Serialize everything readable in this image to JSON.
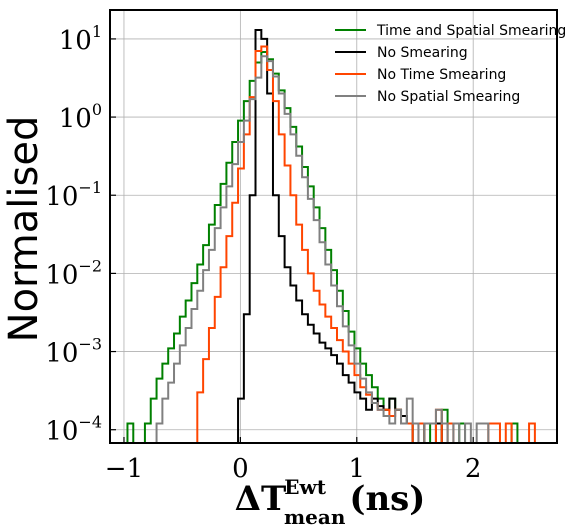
{
  "chart_data": {
    "type": "histogram-step",
    "ylabel": "Normalised",
    "xlabel": {
      "main": "ΔT",
      "sup": "Ewt",
      "sub": "mean",
      "unit": "(ns)"
    },
    "xlim": [
      -1.12,
      2.72
    ],
    "ylim_log10": [
      -4.17,
      1.37
    ],
    "log_y": true,
    "grid": true,
    "legend_position": "top-right",
    "x_ticks": [
      {
        "value": -1,
        "label": "−1"
      },
      {
        "value": 0,
        "label": "0"
      },
      {
        "value": 1,
        "label": "1"
      },
      {
        "value": 2,
        "label": "2"
      }
    ],
    "y_ticks": [
      {
        "exp": 1,
        "base": "10",
        "power": "1"
      },
      {
        "exp": 0,
        "base": "10",
        "power": "0"
      },
      {
        "exp": -1,
        "base": "10",
        "power": "−1"
      },
      {
        "exp": -2,
        "base": "10",
        "power": "−2"
      },
      {
        "exp": -3,
        "base": "10",
        "power": "−3"
      },
      {
        "exp": -4,
        "base": "10",
        "power": "−4"
      }
    ],
    "bins": {
      "start": -1.12,
      "width": 0.05
    },
    "series": [
      {
        "name": "Time and Spatial Smearing",
        "color": "#008000",
        "values": [
          0,
          0,
          0,
          0.00012,
          0,
          0,
          0.00012,
          0.00025,
          0.00045,
          0.0007,
          0.0011,
          0.0017,
          0.0028,
          0.0045,
          0.0075,
          0.013,
          0.023,
          0.042,
          0.075,
          0.14,
          0.26,
          0.48,
          0.9,
          1.6,
          2.9,
          5.0,
          6.8,
          5.5,
          3.6,
          2.2,
          1.3,
          0.75,
          0.42,
          0.23,
          0.13,
          0.07,
          0.038,
          0.02,
          0.011,
          0.006,
          0.0033,
          0.0018,
          0.0011,
          0.0007,
          0.0005,
          0.00035,
          0.00025,
          0.00018,
          0.00025,
          0.00018,
          0.00012,
          0.00012,
          0,
          0,
          0.00012,
          0,
          0,
          0.00018,
          0,
          0,
          0.00012,
          0,
          0,
          0,
          0,
          0,
          0,
          0,
          0,
          0.00012,
          0,
          0,
          0,
          0,
          0,
          0,
          0
        ]
      },
      {
        "name": "No Smearing",
        "color": "#000000",
        "values": [
          0,
          0,
          0,
          0,
          0,
          0,
          0,
          0,
          0,
          0,
          0,
          0,
          0,
          0,
          0,
          0,
          0,
          0,
          0,
          0,
          0,
          0,
          0.00025,
          0.003,
          0.1,
          13,
          10,
          2.0,
          0.1,
          0.03,
          0.012,
          0.007,
          0.0045,
          0.003,
          0.0022,
          0.0017,
          0.0013,
          0.0011,
          0.0009,
          0.0007,
          0.0005,
          0.0004,
          0.0003,
          0.00025,
          0.00018,
          0.00025,
          0.0002,
          0.00018,
          0.00025,
          0.00018,
          0.00015,
          0.00012,
          0,
          0.00012,
          0,
          0,
          0.00012,
          0,
          0,
          0,
          0,
          0,
          0,
          0,
          0,
          0,
          0,
          0,
          0,
          0,
          0,
          0,
          0,
          0,
          0,
          0,
          0
        ]
      },
      {
        "name": "No Time Smearing",
        "color": "#ff4500",
        "values": [
          0,
          0,
          0,
          0,
          0,
          0,
          0,
          0,
          0,
          0,
          0,
          0,
          0,
          0,
          0,
          0.0003,
          0.0008,
          0.002,
          0.005,
          0.012,
          0.03,
          0.08,
          0.22,
          0.6,
          1.8,
          7.0,
          8.0,
          4.0,
          1.6,
          0.6,
          0.24,
          0.1,
          0.042,
          0.02,
          0.01,
          0.006,
          0.004,
          0.0028,
          0.002,
          0.0014,
          0.001,
          0.0007,
          0.0005,
          0.00035,
          0.00028,
          0.00022,
          0.00018,
          0.00018,
          0.00015,
          0.00018,
          0.00012,
          0.00012,
          0,
          0.00012,
          0,
          0,
          0.00018,
          0,
          0.00012,
          0,
          0,
          0,
          0,
          0,
          0,
          0.00012,
          0.00012,
          0,
          0.00012,
          0,
          0,
          0,
          0.00012,
          0,
          0,
          0,
          0
        ]
      },
      {
        "name": "No Spatial Smearing",
        "color": "#808080",
        "values": [
          0,
          0,
          0,
          0,
          0,
          0,
          0,
          0,
          0.00012,
          0.00025,
          0.0004,
          0.0007,
          0.0012,
          0.002,
          0.0035,
          0.006,
          0.011,
          0.02,
          0.038,
          0.07,
          0.13,
          0.25,
          0.48,
          0.9,
          1.7,
          3.2,
          6.0,
          5.2,
          3.3,
          2.0,
          1.1,
          0.6,
          0.32,
          0.17,
          0.09,
          0.048,
          0.025,
          0.013,
          0.007,
          0.0038,
          0.0021,
          0.0012,
          0.0007,
          0.00045,
          0.0003,
          0.00022,
          0.00018,
          0.00015,
          0.00012,
          0.00018,
          0.00012,
          0.00025,
          0.00012,
          0,
          0.00012,
          0.00012,
          0.00018,
          0.00012,
          0,
          0.00012,
          0,
          0.00012,
          0,
          0.00012,
          0.00012,
          0,
          0,
          0,
          0,
          0,
          0,
          0,
          0,
          0,
          0,
          0,
          0
        ]
      }
    ]
  }
}
